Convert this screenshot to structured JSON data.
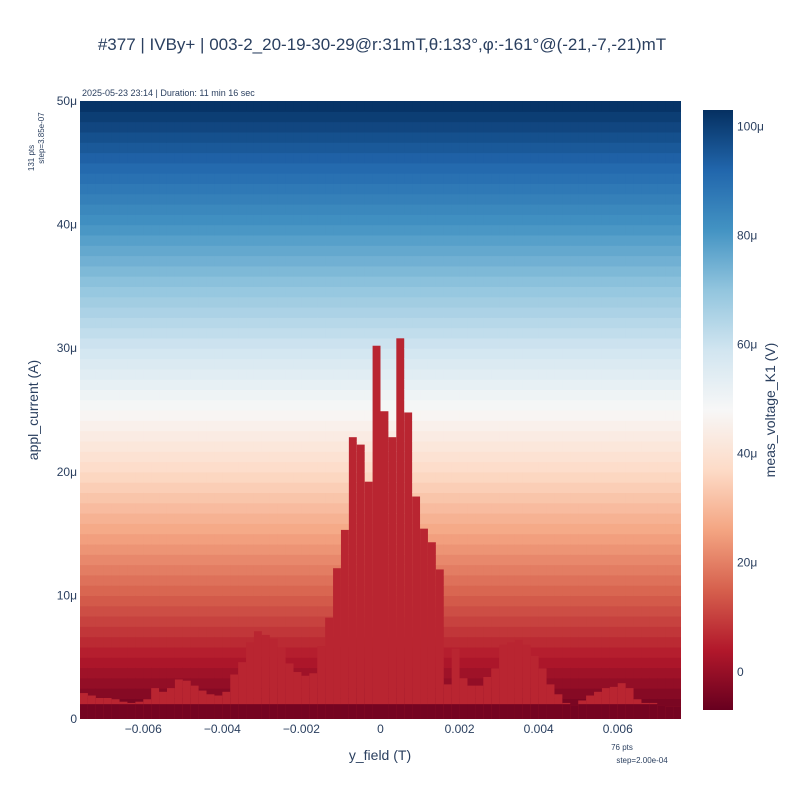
{
  "chart_data": {
    "type": "heatmap",
    "title": "#377 | IVBy+ | 003-2_20-19-30-29@r:31mT,θ:133°,φ:-161°@(-21,-7,-21)mT",
    "timestamp_label": "2025-05-23 23:14 | Duration: 11 min 16 sec",
    "xlabel": "y_field (T)",
    "ylabel": "appl_current (A)",
    "colorbar_label": "meas_voltage_K1 (V)",
    "x_points_label": "76 pts",
    "x_step_label": "step=2.00e-04",
    "y_points_label": "131 pts",
    "y_step_label": "step=3.85e-07",
    "x_range": [
      -0.0076,
      0.0076
    ],
    "y_range": [
      0,
      5e-05
    ],
    "x_ticks": [
      {
        "value": -0.006,
        "label": "−0.006"
      },
      {
        "value": -0.004,
        "label": "−0.004"
      },
      {
        "value": -0.002,
        "label": "−0.002"
      },
      {
        "value": 0,
        "label": "0"
      },
      {
        "value": 0.002,
        "label": "0.002"
      },
      {
        "value": 0.004,
        "label": "0.004"
      },
      {
        "value": 0.006,
        "label": "0.006"
      }
    ],
    "y_ticks": [
      {
        "value": 0,
        "label": "0"
      },
      {
        "value": 1e-05,
        "label": "10μ"
      },
      {
        "value": 2e-05,
        "label": "20μ"
      },
      {
        "value": 3e-05,
        "label": "30μ"
      },
      {
        "value": 4e-05,
        "label": "40μ"
      },
      {
        "value": 5e-05,
        "label": "50μ"
      }
    ],
    "colorbar_range": [
      -7e-06,
      0.000103
    ],
    "colorbar_ticks": [
      {
        "value": 0,
        "label": "0"
      },
      {
        "value": 2e-05,
        "label": "20μ"
      },
      {
        "value": 4e-05,
        "label": "40μ"
      },
      {
        "value": 6e-05,
        "label": "60μ"
      },
      {
        "value": 8e-05,
        "label": "80μ"
      },
      {
        "value": 0.0001,
        "label": "100μ"
      }
    ],
    "colorscale": [
      "#67001f",
      "#b2182b",
      "#d6604d",
      "#f4a582",
      "#fddbc7",
      "#f7f7f7",
      "#d1e5f0",
      "#92c5de",
      "#4393c3",
      "#2166ac",
      "#053061"
    ],
    "voltage_vs_current": {
      "current": [
        0,
        5e-05
      ],
      "voltage": [
        -7e-06,
        0.000103
      ]
    },
    "x_start": -0.0075,
    "x_step": 0.0002,
    "critical_current": [
      2.1e-06,
      1.9e-06,
      1.7e-06,
      1.7e-06,
      1.6e-06,
      1.4e-06,
      1.3e-06,
      1.4e-06,
      1.6e-06,
      2.5e-06,
      2.2e-06,
      2.5e-06,
      3.2e-06,
      3.1e-06,
      2.7e-06,
      2.3e-06,
      2e-06,
      1.9e-06,
      2.2e-06,
      3.6e-06,
      4.6e-06,
      6.2e-06,
      7.1e-06,
      6.8e-06,
      6.5e-06,
      5.8e-06,
      4.5e-06,
      3.8e-06,
      3.5e-06,
      3.7e-06,
      5.9e-06,
      8.2e-06,
      1.22e-05,
      1.53e-05,
      2.28e-05,
      2.22e-05,
      1.92e-05,
      3.02e-05,
      2.49e-05,
      2.28e-05,
      3.08e-05,
      2.48e-05,
      1.8e-05,
      1.54e-05,
      1.43e-05,
      1.21e-05,
      2.8e-06,
      5.7e-06,
      3.3e-06,
      2.7e-06,
      2.7e-06,
      3.4e-06,
      4.1e-06,
      6e-06,
      6.2e-06,
      6.4e-06,
      6e-06,
      5.1e-06,
      4.1e-06,
      2.8e-06,
      2e-06,
      1.3e-06,
      1.1e-06,
      1.5e-06,
      1.9e-06,
      2.2e-06,
      2.5e-06,
      2.6e-06,
      2.9e-06,
      2.5e-06,
      1.6e-06,
      1.3e-06,
      1.3e-06,
      1.1e-06,
      1e-06,
      1e-06
    ],
    "below_critical_voltage": 6e-06,
    "grid": false,
    "colorbar_position": "right"
  }
}
